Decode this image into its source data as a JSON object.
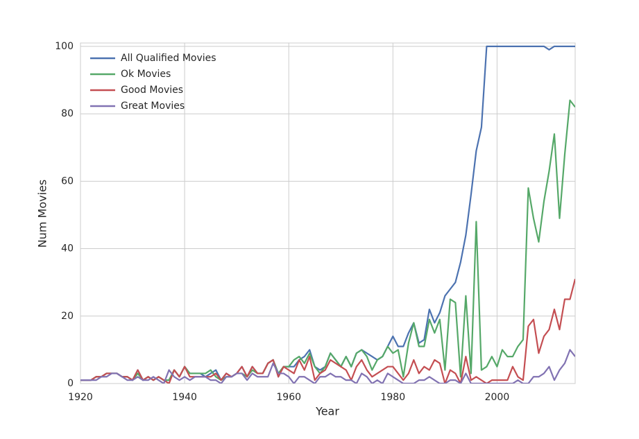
{
  "chart_data": {
    "type": "line",
    "x_label": "Year",
    "y_label": "Num Movies",
    "x": [
      1920,
      1921,
      1922,
      1923,
      1924,
      1925,
      1926,
      1927,
      1928,
      1929,
      1930,
      1931,
      1932,
      1933,
      1934,
      1935,
      1936,
      1937,
      1938,
      1939,
      1940,
      1941,
      1942,
      1943,
      1944,
      1945,
      1946,
      1947,
      1948,
      1949,
      1950,
      1951,
      1952,
      1953,
      1954,
      1955,
      1956,
      1957,
      1958,
      1959,
      1960,
      1961,
      1962,
      1963,
      1964,
      1965,
      1966,
      1967,
      1968,
      1969,
      1970,
      1971,
      1972,
      1973,
      1974,
      1975,
      1976,
      1977,
      1978,
      1979,
      1980,
      1981,
      1982,
      1983,
      1984,
      1985,
      1986,
      1987,
      1988,
      1989,
      1990,
      1991,
      1992,
      1993,
      1994,
      1995,
      1996,
      1997,
      1998,
      1999,
      2000,
      2001,
      2002,
      2003,
      2004,
      2005,
      2006,
      2007,
      2008,
      2009,
      2010,
      2011,
      2012,
      2013,
      2014,
      2015
    ],
    "series": [
      {
        "name": "All Qualified Movies",
        "color": "#4c72b0",
        "values": [
          1,
          1,
          1,
          2,
          2,
          3,
          3,
          3,
          2,
          2,
          1,
          4,
          1,
          2,
          1,
          2,
          1,
          1,
          4,
          2,
          5,
          3,
          3,
          3,
          2,
          3,
          4,
          1,
          3,
          2,
          3,
          5,
          2,
          5,
          3,
          3,
          6,
          7,
          2,
          5,
          5,
          5,
          7,
          8,
          10,
          5,
          4,
          5,
          9,
          7,
          5,
          8,
          5,
          9,
          10,
          9,
          8,
          7,
          8,
          11,
          14,
          11,
          11,
          15,
          18,
          12,
          13,
          22,
          18,
          21,
          26,
          28,
          30,
          36,
          44,
          56,
          69,
          76,
          100,
          100,
          100,
          100,
          100,
          100,
          100,
          100,
          100,
          100,
          100,
          100,
          99,
          100,
          100,
          100,
          100,
          100
        ]
      },
      {
        "name": "Ok Movies",
        "color": "#55a868",
        "values": [
          1,
          1,
          1,
          2,
          2,
          3,
          3,
          3,
          2,
          2,
          1,
          3,
          1,
          2,
          1,
          2,
          1,
          1,
          4,
          2,
          5,
          3,
          3,
          3,
          3,
          4,
          2,
          1,
          2,
          2,
          3,
          3,
          2,
          4,
          3,
          3,
          6,
          7,
          3,
          5,
          5,
          7,
          8,
          6,
          9,
          5,
          3,
          5,
          9,
          7,
          5,
          8,
          5,
          9,
          10,
          8,
          4,
          7,
          8,
          11,
          9,
          10,
          2,
          12,
          18,
          11,
          11,
          19,
          15,
          19,
          4,
          25,
          24,
          2,
          26,
          3,
          48,
          4,
          5,
          8,
          5,
          10,
          8,
          8,
          11,
          13,
          58,
          49,
          42,
          54,
          63,
          74,
          49,
          68,
          84,
          82
        ]
      },
      {
        "name": "Good Movies",
        "color": "#c44e52",
        "values": [
          1,
          1,
          1,
          2,
          2,
          3,
          3,
          3,
          2,
          2,
          1,
          4,
          1,
          2,
          1,
          2,
          1,
          0,
          4,
          2,
          5,
          2,
          2,
          2,
          2,
          2,
          3,
          1,
          3,
          2,
          3,
          5,
          2,
          5,
          3,
          3,
          6,
          7,
          2,
          5,
          4,
          3,
          7,
          4,
          8,
          1,
          3,
          4,
          7,
          6,
          5,
          4,
          1,
          5,
          7,
          4,
          2,
          3,
          4,
          5,
          5,
          3,
          1,
          3,
          7,
          3,
          5,
          4,
          7,
          6,
          0,
          4,
          3,
          0,
          8,
          1,
          2,
          1,
          0,
          1,
          1,
          1,
          1,
          5,
          2,
          1,
          17,
          19,
          9,
          14,
          16,
          22,
          16,
          25,
          25,
          31
        ]
      },
      {
        "name": "Great Movies",
        "color": "#8172b2",
        "values": [
          1,
          1,
          1,
          1,
          2,
          2,
          3,
          3,
          2,
          1,
          1,
          2,
          1,
          1,
          2,
          1,
          0,
          4,
          2,
          1,
          2,
          1,
          2,
          2,
          2,
          1,
          1,
          0,
          2,
          2,
          3,
          3,
          1,
          3,
          2,
          2,
          2,
          6,
          3,
          3,
          2,
          0,
          2,
          2,
          1,
          0,
          2,
          2,
          3,
          2,
          2,
          1,
          1,
          0,
          3,
          2,
          0,
          1,
          0,
          3,
          2,
          1,
          0,
          0,
          0,
          1,
          1,
          2,
          1,
          0,
          0,
          1,
          1,
          0,
          3,
          0,
          0,
          0,
          0,
          0,
          0,
          0,
          0,
          0,
          1,
          0,
          0,
          2,
          2,
          3,
          5,
          1,
          4,
          6,
          10,
          8
        ]
      }
    ],
    "xlim": [
      1920,
      2015
    ],
    "xticks": [
      1920,
      1940,
      1960,
      1980,
      2000
    ],
    "ylim": [
      0,
      101
    ],
    "yticks": [
      0,
      20,
      40,
      60,
      80,
      100
    ],
    "grid": true,
    "legend": "upper-left"
  }
}
